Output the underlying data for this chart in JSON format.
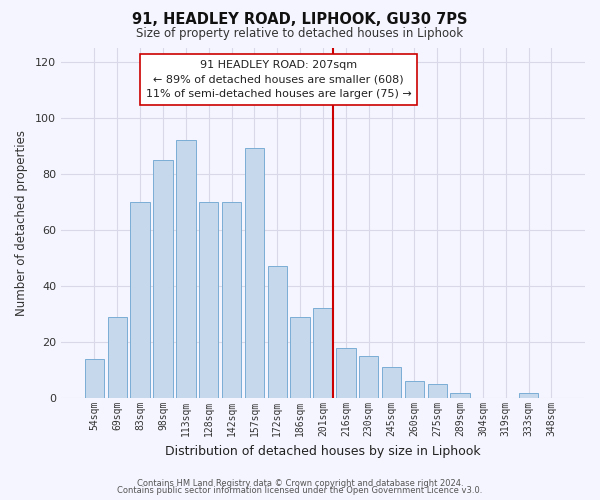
{
  "title": "91, HEADLEY ROAD, LIPHOOK, GU30 7PS",
  "subtitle": "Size of property relative to detached houses in Liphook",
  "xlabel": "Distribution of detached houses by size in Liphook",
  "ylabel": "Number of detached properties",
  "bar_labels": [
    "54sqm",
    "69sqm",
    "83sqm",
    "98sqm",
    "113sqm",
    "128sqm",
    "142sqm",
    "157sqm",
    "172sqm",
    "186sqm",
    "201sqm",
    "216sqm",
    "230sqm",
    "245sqm",
    "260sqm",
    "275sqm",
    "289sqm",
    "304sqm",
    "319sqm",
    "333sqm",
    "348sqm"
  ],
  "bar_values": [
    14,
    29,
    70,
    85,
    92,
    70,
    70,
    89,
    47,
    29,
    32,
    18,
    15,
    11,
    6,
    5,
    2,
    0,
    0,
    2,
    0
  ],
  "bar_color": "#c5d8ec",
  "bar_edge_color": "#7aadd4",
  "ylim": [
    0,
    125
  ],
  "yticks": [
    0,
    20,
    40,
    60,
    80,
    100,
    120
  ],
  "vline_idx": 10.43,
  "vline_color": "#cc0000",
  "ann_title": "91 HEADLEY ROAD: 207sqm",
  "ann_line1": "← 89% of detached houses are smaller (608)",
  "ann_line2": "11% of semi-detached houses are larger (75) →",
  "footer1": "Contains HM Land Registry data © Crown copyright and database right 2024.",
  "footer2": "Contains public sector information licensed under the Open Government Licence v3.0.",
  "bg_color": "#f5f5ff",
  "grid_color": "#d8d8e8"
}
